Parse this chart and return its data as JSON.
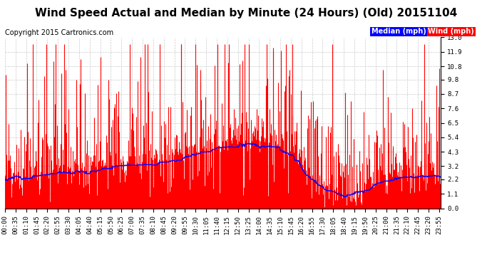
{
  "title": "Wind Speed Actual and Median by Minute (24 Hours) (Old) 20151104",
  "copyright": "Copyright 2015 Cartronics.com",
  "yticks": [
    0.0,
    1.1,
    2.2,
    3.2,
    4.3,
    5.4,
    6.5,
    7.6,
    8.7,
    9.8,
    10.8,
    11.9,
    13.0
  ],
  "ymin": 0.0,
  "ymax": 13.0,
  "wind_color": "#FF0000",
  "median_color": "#0000FF",
  "background_color": "#FFFFFF",
  "grid_color": "#BBBBBB",
  "legend_median_bg": "#0000FF",
  "legend_wind_bg": "#FF0000",
  "legend_median_text": "Median (mph)",
  "legend_wind_text": "Wind (mph)",
  "title_fontsize": 11,
  "copyright_fontsize": 7,
  "tick_fontsize": 6.5,
  "bar_linewidth": 0.8
}
